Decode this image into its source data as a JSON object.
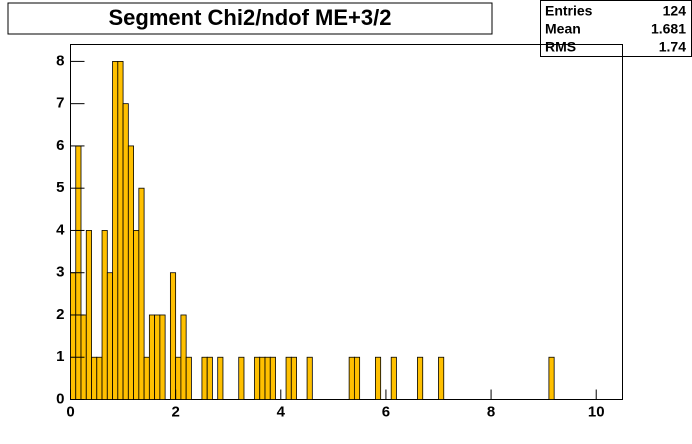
{
  "chart_data": {
    "type": "histogram",
    "title": "Segment Chi2/ndof ME+3/2",
    "bins": [
      0,
      0.1,
      0.2,
      0.3,
      0.4,
      0.5,
      0.6,
      0.7,
      0.8,
      0.9,
      1,
      1.1,
      1.2,
      1.3,
      1.4,
      1.5,
      1.6,
      1.7,
      1.8,
      1.9,
      2,
      2.1,
      2.2,
      2.3,
      2.4,
      2.5,
      2.6,
      2.7,
      2.8,
      2.9,
      3,
      3.1,
      3.2,
      3.3,
      3.4,
      3.5,
      3.6,
      3.7,
      3.8,
      3.9,
      4,
      4.1,
      4.2,
      4.3,
      4.4,
      4.5,
      4.6,
      4.7,
      4.8,
      4.9,
      5,
      5.1,
      5.2,
      5.3,
      5.4,
      5.5,
      5.6,
      5.7,
      5.8,
      5.9,
      6,
      6.1,
      6.2,
      6.3,
      6.4,
      6.5,
      6.6,
      6.7,
      6.8,
      6.9,
      7,
      7.1,
      7.2,
      7.3,
      7.4,
      7.5,
      7.6,
      7.7,
      7.8,
      7.9,
      8,
      8.1,
      8.2,
      8.3,
      8.4,
      8.5,
      8.6,
      8.7,
      8.8,
      8.9,
      9,
      9.1,
      9.2,
      9.3,
      9.4,
      9.5,
      9.6,
      9.7,
      9.8,
      9.9,
      10,
      10.1,
      10.2,
      10.3,
      10.4,
      10.5
    ],
    "values": [
      3,
      6,
      2,
      4,
      1,
      1,
      4,
      3,
      8,
      8,
      7,
      6,
      4,
      5,
      1,
      2,
      2,
      2,
      0,
      3,
      1,
      2,
      1,
      0,
      0,
      1,
      1,
      0,
      1,
      0,
      0,
      0,
      1,
      0,
      0,
      1,
      1,
      1,
      1,
      0,
      0,
      1,
      1,
      0,
      0,
      1,
      0,
      0,
      0,
      0,
      0,
      0,
      0,
      1,
      1,
      0,
      0,
      0,
      1,
      0,
      0,
      1,
      0,
      0,
      0,
      0,
      1,
      0,
      0,
      0,
      1,
      0,
      0,
      0,
      0,
      0,
      0,
      0,
      0,
      0,
      0,
      0,
      0,
      0,
      0,
      0,
      0,
      0,
      0,
      0,
      0,
      1,
      0,
      0,
      0,
      0,
      0,
      0,
      0,
      0,
      0,
      0,
      0,
      0,
      0
    ],
    "color": "#ffc000",
    "xlim": [
      0,
      10.5
    ],
    "ylim": [
      0,
      8.4
    ],
    "xticks": [
      0,
      2,
      4,
      6,
      8,
      10
    ],
    "yticks": [
      0,
      1,
      2,
      3,
      4,
      5,
      6,
      7,
      8
    ],
    "stats": [
      {
        "label": "Entries",
        "value": 124
      },
      {
        "label": "Mean",
        "value": 1.681
      },
      {
        "label": "RMS",
        "value": 1.74
      }
    ]
  }
}
